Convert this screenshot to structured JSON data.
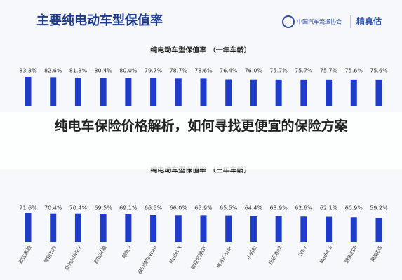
{
  "header": {
    "title": "主要纯电动车型保值率",
    "logo_org": "中国汽车流通协会",
    "logo_brand": "精真估"
  },
  "banner": {
    "text": "纯电车保险价格解析，如何寻找更便宜的保险方案"
  },
  "chart_data": [
    {
      "type": "bar",
      "title": "纯电动车型保值率 （一年车龄）",
      "color": "#1f3cc8",
      "categories": [
        null,
        null,
        null,
        null,
        null,
        null,
        null,
        null,
        null,
        null,
        null,
        null,
        null,
        null,
        null
      ],
      "values": [
        83.3,
        82.6,
        81.3,
        80.4,
        80.0,
        79.7,
        78.7,
        78.6,
        76.4,
        76.0,
        75.7,
        75.7,
        75.7,
        75.6,
        75.6
      ],
      "value_labels": [
        "83.3%",
        "82.6%",
        "81.3%",
        "80.4%",
        "80.0%",
        "79.7%",
        "78.7%",
        "78.6%",
        "76.4%",
        "76.0%",
        "75.7%",
        "75.7%",
        "75.7%",
        "75.6%",
        "75.6%"
      ]
    },
    {
      "type": "bar",
      "title": "纯电动车型保值率 （三年车龄）",
      "color": "#1f3cc8",
      "categories": [
        "欧拉黑猫",
        "零跑T03",
        "宏光MINIEV",
        "欧拉好猫",
        "哪吒V",
        "保时捷Taycan",
        "Model X",
        "欧拉好猫GT",
        "奔奔E-Star",
        "小蚂蚁",
        "比亚迪e2",
        "汉EV",
        "Model S",
        "蔚来ES6",
        "荣威Ei5"
      ],
      "values": [
        71.6,
        70.4,
        70.4,
        69.5,
        69.1,
        66.5,
        66.0,
        65.9,
        65.5,
        64.4,
        63.9,
        62.6,
        62.1,
        60.9,
        59.2
      ],
      "value_labels": [
        "71.6%",
        "70.4%",
        "70.4%",
        "69.5%",
        "69.1%",
        "66.5%",
        "66.0%",
        "65.9%",
        "65.5%",
        "64.4%",
        "63.9%",
        "62.6%",
        "62.1%",
        "60.9%",
        "59.2%"
      ]
    }
  ]
}
